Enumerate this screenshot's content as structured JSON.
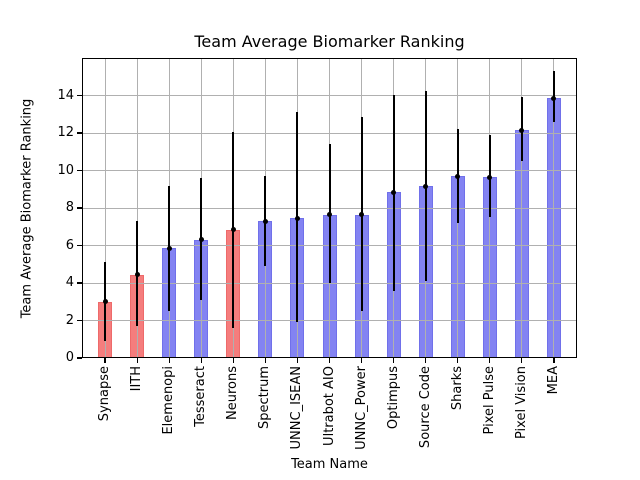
{
  "chart_data": {
    "type": "bar",
    "title": "Team Average Biomarker Ranking",
    "xlabel": "Team Name",
    "ylabel": "Team Average Biomarker Ranking",
    "ylim": [
      0,
      16
    ],
    "yticks": [
      0,
      2,
      4,
      6,
      8,
      10,
      12,
      14
    ],
    "grid": true,
    "grid_color": "#b0b0b0",
    "legend_position": "none",
    "categories": [
      "Synapse",
      "IITH",
      "Elemenopi",
      "Tesseract",
      "Neurons",
      "Spectrum",
      "UNNC_ISEAN",
      "Ultrabot AIO",
      "UNNC_Power",
      "Optimpus",
      "Source Code",
      "Sharks",
      "Pixel Pulse",
      "Pixel Vision",
      "MEA"
    ],
    "values": [
      3.0,
      4.45,
      5.85,
      6.3,
      6.85,
      7.3,
      7.45,
      7.65,
      7.65,
      8.85,
      9.15,
      9.7,
      9.65,
      12.15,
      13.85
    ],
    "error_low": [
      0.9,
      1.7,
      2.5,
      3.1,
      1.6,
      4.9,
      1.9,
      4.0,
      2.5,
      3.6,
      4.1,
      7.2,
      7.5,
      10.5,
      12.6
    ],
    "error_high": [
      5.1,
      7.3,
      9.15,
      9.6,
      12.05,
      9.7,
      13.1,
      11.4,
      12.85,
      14.05,
      14.25,
      12.2,
      11.9,
      13.9,
      15.3
    ],
    "bar_color_keys": [
      "red",
      "red",
      "blue",
      "blue",
      "red",
      "blue",
      "blue",
      "blue",
      "blue",
      "blue",
      "blue",
      "blue",
      "blue",
      "blue",
      "blue"
    ],
    "palette": {
      "red": "#f57d7d",
      "blue": "#8383f2"
    },
    "bar_edge_palette": {
      "red": "#ee6a6a",
      "blue": "#7070ea"
    },
    "error_bar_color": "#000000",
    "marker": "dot"
  }
}
